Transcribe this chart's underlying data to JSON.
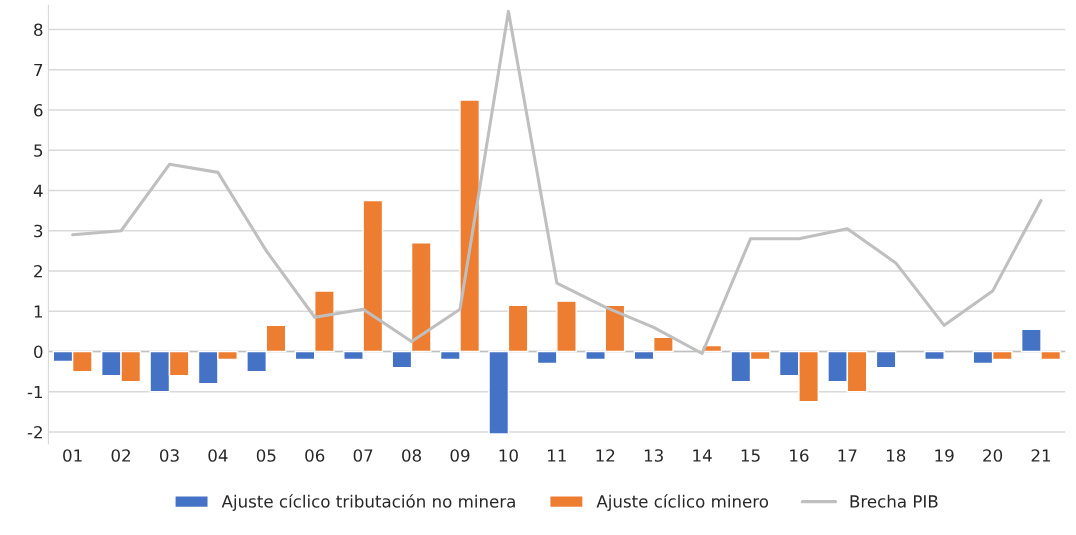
{
  "chart_data": {
    "type": "bar",
    "categories": [
      "01",
      "02",
      "03",
      "04",
      "05",
      "06",
      "07",
      "08",
      "09",
      "10",
      "11",
      "12",
      "13",
      "14",
      "15",
      "16",
      "17",
      "18",
      "19",
      "20",
      "21"
    ],
    "series": [
      {
        "name": "Ajuste cíclico tributación no minera",
        "color": "#4472c4",
        "values": [
          -0.25,
          -0.6,
          -1.0,
          -0.8,
          -0.5,
          -0.2,
          -0.2,
          -0.4,
          -0.2,
          -2.05,
          -0.3,
          -0.2,
          -0.2,
          null,
          -0.75,
          -0.6,
          -0.75,
          -0.4,
          -0.2,
          -0.3,
          0.55
        ]
      },
      {
        "name": "Ajuste cíclico minero",
        "color": "#ed7d31",
        "values": [
          -0.5,
          -0.75,
          -0.6,
          -0.2,
          0.65,
          1.5,
          3.75,
          2.7,
          6.25,
          1.15,
          1.25,
          1.15,
          0.35,
          0.15,
          -0.2,
          -1.25,
          -1.0,
          null,
          null,
          -0.2,
          -0.2
        ]
      },
      {
        "name": "Brecha PIB",
        "color": "#bfbfbf",
        "type": "line",
        "values": [
          2.9,
          3.0,
          4.65,
          4.45,
          2.5,
          0.85,
          1.05,
          0.25,
          1.05,
          8.45,
          1.7,
          1.1,
          0.6,
          -0.05,
          2.8,
          2.8,
          3.05,
          2.2,
          0.65,
          1.5,
          3.75
        ]
      }
    ],
    "ylim": [
      -2.3,
      8.6
    ],
    "yticks": [
      -2,
      -1,
      0,
      1,
      2,
      3,
      4,
      5,
      6,
      7,
      8
    ],
    "grid": "y",
    "legend": "bottom",
    "marker": "none",
    "line_style": "solid"
  }
}
